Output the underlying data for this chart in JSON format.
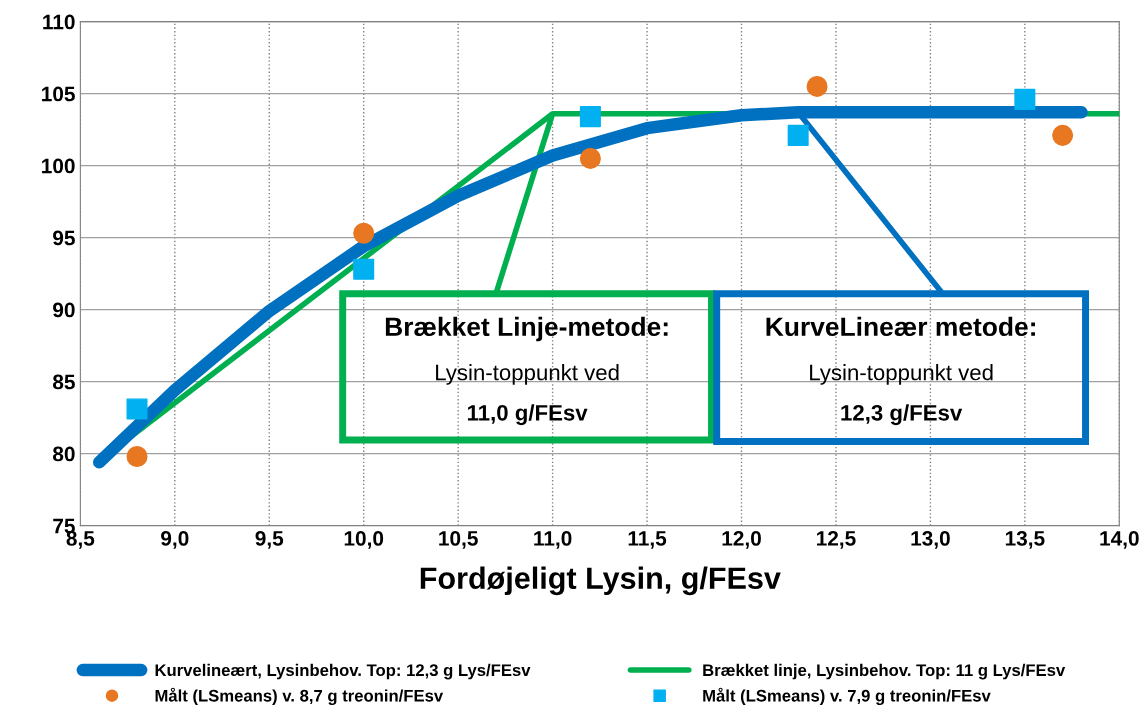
{
  "chart_data": {
    "type": "line",
    "xlabel": "Fordøjeligt Lysin, g/FEsv",
    "xlim": [
      8.5,
      14.0
    ],
    "ylim": [
      75,
      110
    ],
    "xticks": [
      {
        "value": 8.5,
        "label": "8,5"
      },
      {
        "value": 9.0,
        "label": "9,0"
      },
      {
        "value": 9.5,
        "label": "9,5"
      },
      {
        "value": 10.0,
        "label": "10,0"
      },
      {
        "value": 10.5,
        "label": "10,5"
      },
      {
        "value": 11.0,
        "label": "11,0"
      },
      {
        "value": 11.5,
        "label": "11,5"
      },
      {
        "value": 12.0,
        "label": "12,0"
      },
      {
        "value": 12.5,
        "label": "12,5"
      },
      {
        "value": 13.0,
        "label": "13,0"
      },
      {
        "value": 13.5,
        "label": "13,5"
      },
      {
        "value": 14.0,
        "label": "14,0"
      }
    ],
    "yticks": [
      75,
      80,
      85,
      90,
      95,
      100,
      105,
      110
    ],
    "grid": true,
    "legend": "bottom",
    "series": [
      {
        "name": "Kurvelineært, Lysinbehov. Top: 12,3 g Lys/FEsv",
        "color": "#0070c0",
        "marker": "none",
        "x": [
          8.6,
          9.0,
          9.5,
          10.0,
          10.5,
          11.0,
          11.5,
          12.0,
          12.3,
          13.8
        ],
        "values": [
          79.4,
          84.4,
          89.9,
          94.4,
          97.9,
          100.7,
          102.6,
          103.5,
          103.7,
          103.7
        ]
      },
      {
        "name": "Brækket linje, Lysinbehov. Top: 11 g Lys/FEsv",
        "color": "#00b050",
        "marker": "none",
        "x": [
          8.6,
          11.0,
          14.0
        ],
        "values": [
          79.5,
          103.6,
          103.6
        ]
      },
      {
        "name": "Målt (LSmeans) v. 8,7 g treonin/FEsv",
        "type": "scatter",
        "color": "#e87722",
        "marker": "circle",
        "x": [
          8.8,
          10.0,
          11.2,
          12.4,
          13.7
        ],
        "values": [
          79.8,
          95.3,
          100.5,
          105.5,
          102.1
        ]
      },
      {
        "name": "Målt (LSmeans) v. 7,9 g treonin/FEsv",
        "type": "scatter",
        "color": "#00b0f0",
        "marker": "square",
        "x": [
          8.8,
          10.0,
          11.2,
          12.3,
          13.5
        ],
        "values": [
          83.1,
          92.8,
          103.4,
          102.1,
          104.6
        ]
      }
    ],
    "annotations": [
      {
        "text": "Brækket Linje-metode:\nLysin-toppunkt ved\n11,0 g/FEsv",
        "x": 11.0,
        "y": 103.6
      },
      {
        "text": "KurveLineær metode:\nLysin-toppunkt ved\n12,3 g/FEsv",
        "x": 12.3,
        "y": 103.7
      }
    ]
  }
}
